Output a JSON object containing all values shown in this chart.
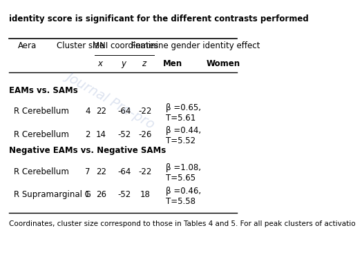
{
  "title_text": "identity score is significant for the different contrasts performed",
  "watermark": "Journal Pre-pro",
  "header1": [
    "Aera",
    "Cluster size",
    "MNI coordinates",
    "",
    "",
    "Feminine gender identity effect",
    ""
  ],
  "header2": [
    "",
    "",
    "x",
    "y",
    "z",
    "Men",
    "Women"
  ],
  "sections": [
    {
      "section_title": "EAMs vs. SAMs",
      "rows": [
        {
          "area": "R Cerebellum",
          "cluster": "4",
          "x": "22",
          "y": "-64",
          "z": "-22",
          "men_line1": "β =0.65,",
          "men_line2": "T=5.61",
          "women": ""
        },
        {
          "area": "R Cerebellum",
          "cluster": "2",
          "x": "14",
          "y": "-52",
          "z": "-26",
          "men_line1": "β =0.44,",
          "men_line2": "T=5.52",
          "women": ""
        }
      ]
    },
    {
      "section_title": "Negative EAMs vs. Negative SAMs",
      "rows": [
        {
          "area": "R Cerebellum",
          "cluster": "7",
          "x": "22",
          "y": "-64",
          "z": "-22",
          "men_line1": "β =1.08,",
          "men_line2": "T=5.65",
          "women": ""
        },
        {
          "area": "R Supramarginal G",
          "cluster": "1",
          "x": "26",
          "y": "-52",
          "z": "18",
          "men_line1": "β =0.46,",
          "men_line2": "T=5.58",
          "women": ""
        }
      ]
    }
  ],
  "footnote": "Coordinates, cluster size correspond to those in Tables 4 and 5. For all peak clusters of activatio",
  "bg_color": "#ffffff",
  "text_color": "#000000",
  "title_fontsize": 8.5,
  "header_fontsize": 8.5,
  "body_fontsize": 8.5,
  "footnote_fontsize": 7.5
}
